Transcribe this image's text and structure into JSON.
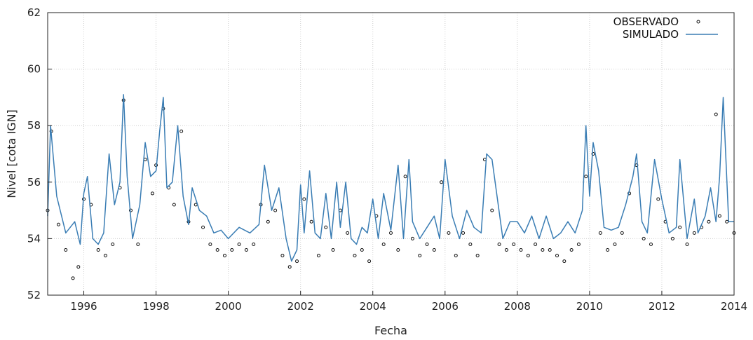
{
  "chart_data": {
    "type": "line",
    "title": "",
    "xlabel": "Fecha",
    "ylabel": "Nivel [cota IGN]",
    "xlim": [
      1995.0,
      2014.0
    ],
    "ylim": [
      52,
      62
    ],
    "x_ticks": [
      1996,
      1998,
      2000,
      2002,
      2004,
      2006,
      2008,
      2010,
      2012,
      2014
    ],
    "y_ticks": [
      52,
      54,
      56,
      58,
      60,
      62
    ],
    "grid": true,
    "legend_position": "top-right",
    "colors": {
      "observed": "#111111",
      "simulated": "#3a7db4"
    },
    "series": [
      {
        "name": "SIMULADO",
        "style": "line",
        "x": [
          1995.0,
          1995.08,
          1995.25,
          1995.5,
          1995.75,
          1995.9,
          1996.0,
          1996.1,
          1996.25,
          1996.4,
          1996.55,
          1996.7,
          1996.85,
          1997.0,
          1997.1,
          1997.2,
          1997.35,
          1997.55,
          1997.7,
          1997.85,
          1998.0,
          1998.1,
          1998.2,
          1998.3,
          1998.45,
          1998.6,
          1998.75,
          1998.9,
          1999.0,
          1999.2,
          1999.4,
          1999.6,
          1999.8,
          2000.0,
          2000.3,
          2000.6,
          2000.85,
          2001.0,
          2001.2,
          2001.4,
          2001.6,
          2001.75,
          2001.9,
          2002.0,
          2002.1,
          2002.25,
          2002.4,
          2002.55,
          2002.7,
          2002.85,
          2003.0,
          2003.1,
          2003.25,
          2003.4,
          2003.55,
          2003.7,
          2003.85,
          2004.0,
          2004.15,
          2004.3,
          2004.5,
          2004.7,
          2004.85,
          2005.0,
          2005.1,
          2005.3,
          2005.5,
          2005.7,
          2005.85,
          2006.0,
          2006.2,
          2006.4,
          2006.6,
          2006.8,
          2007.0,
          2007.15,
          2007.3,
          2007.45,
          2007.6,
          2007.8,
          2008.0,
          2008.2,
          2008.4,
          2008.6,
          2008.8,
          2009.0,
          2009.2,
          2009.4,
          2009.6,
          2009.8,
          2009.9,
          2010.0,
          2010.1,
          2010.25,
          2010.4,
          2010.6,
          2010.8,
          2011.0,
          2011.2,
          2011.3,
          2011.45,
          2011.6,
          2011.8,
          2012.0,
          2012.2,
          2012.4,
          2012.5,
          2012.7,
          2012.9,
          2013.0,
          2013.2,
          2013.35,
          2013.5,
          2013.6,
          2013.7,
          2013.85,
          2014.0
        ],
        "values": [
          54.8,
          58.0,
          55.5,
          54.2,
          54.6,
          53.8,
          55.6,
          56.2,
          54.0,
          53.8,
          54.2,
          57.0,
          55.2,
          56.0,
          59.1,
          56.2,
          54.0,
          55.2,
          57.4,
          56.2,
          56.4,
          57.8,
          59.0,
          55.8,
          56.0,
          58.0,
          55.5,
          54.5,
          55.8,
          55.0,
          54.8,
          54.2,
          54.3,
          54.0,
          54.4,
          54.2,
          54.5,
          56.6,
          55.0,
          55.8,
          54.0,
          53.2,
          53.6,
          55.9,
          54.2,
          56.4,
          54.2,
          54.0,
          55.6,
          54.0,
          56.0,
          54.4,
          56.0,
          54.0,
          53.8,
          54.4,
          54.2,
          55.4,
          54.0,
          55.6,
          54.3,
          56.6,
          54.0,
          56.8,
          54.6,
          54.0,
          54.4,
          54.8,
          54.0,
          56.8,
          54.8,
          54.0,
          55.0,
          54.4,
          54.2,
          57.0,
          56.8,
          55.4,
          54.0,
          54.6,
          54.6,
          54.2,
          54.8,
          54.0,
          54.8,
          54.0,
          54.2,
          54.6,
          54.2,
          55.0,
          58.0,
          55.5,
          57.4,
          56.4,
          54.4,
          54.3,
          54.4,
          55.2,
          56.2,
          57.0,
          54.6,
          54.2,
          56.8,
          55.4,
          54.2,
          54.4,
          56.8,
          54.0,
          55.4,
          54.2,
          54.8,
          55.8,
          54.6,
          56.2,
          59.0,
          54.6,
          54.6
        ]
      },
      {
        "name": "OBSERVADO",
        "style": "points",
        "x": [
          1995.0,
          1995.1,
          1995.3,
          1995.5,
          1995.7,
          1995.85,
          1996.0,
          1996.2,
          1996.4,
          1996.6,
          1996.8,
          1997.0,
          1997.1,
          1997.3,
          1997.5,
          1997.7,
          1997.9,
          1998.0,
          1998.2,
          1998.35,
          1998.5,
          1998.7,
          1998.9,
          1999.1,
          1999.3,
          1999.5,
          1999.7,
          1999.9,
          2000.1,
          2000.3,
          2000.5,
          2000.7,
          2000.9,
          2001.1,
          2001.3,
          2001.5,
          2001.7,
          2001.9,
          2002.1,
          2002.3,
          2002.5,
          2002.7,
          2002.9,
          2003.1,
          2003.3,
          2003.5,
          2003.7,
          2003.9,
          2004.1,
          2004.3,
          2004.5,
          2004.7,
          2004.9,
          2005.1,
          2005.3,
          2005.5,
          2005.7,
          2005.9,
          2006.1,
          2006.3,
          2006.5,
          2006.7,
          2006.9,
          2007.1,
          2007.3,
          2007.5,
          2007.7,
          2007.9,
          2008.1,
          2008.3,
          2008.5,
          2008.7,
          2008.9,
          2009.1,
          2009.3,
          2009.5,
          2009.7,
          2009.9,
          2010.1,
          2010.3,
          2010.5,
          2010.7,
          2010.9,
          2011.1,
          2011.3,
          2011.5,
          2011.7,
          2011.9,
          2012.1,
          2012.3,
          2012.5,
          2012.7,
          2012.9,
          2013.1,
          2013.3,
          2013.5,
          2013.6,
          2013.8,
          2014.0
        ],
        "values": [
          55.0,
          57.8,
          54.5,
          53.6,
          52.6,
          53.0,
          55.4,
          55.2,
          53.6,
          53.4,
          53.8,
          55.8,
          58.9,
          55.0,
          53.8,
          56.8,
          55.6,
          56.6,
          58.6,
          55.8,
          55.2,
          57.8,
          54.6,
          55.2,
          54.4,
          53.8,
          53.6,
          53.4,
          53.6,
          53.8,
          53.6,
          53.8,
          55.2,
          54.6,
          55.0,
          53.4,
          53.0,
          53.2,
          55.4,
          54.6,
          53.4,
          54.4,
          53.6,
          55.0,
          54.2,
          53.4,
          53.6,
          53.2,
          54.8,
          53.8,
          54.2,
          53.6,
          56.2,
          54.0,
          53.4,
          53.8,
          53.6,
          56.0,
          54.2,
          53.4,
          54.2,
          53.8,
          53.4,
          56.8,
          55.0,
          53.8,
          53.6,
          53.8,
          53.6,
          53.4,
          53.8,
          53.6,
          53.6,
          53.4,
          53.2,
          53.6,
          53.8,
          56.2,
          57.0,
          54.2,
          53.6,
          53.8,
          54.2,
          55.6,
          56.6,
          54.0,
          53.8,
          55.4,
          54.6,
          54.0,
          54.4,
          53.8,
          54.2,
          54.4,
          54.6,
          58.4,
          54.8,
          54.6,
          54.2
        ]
      }
    ]
  },
  "legend": {
    "items": [
      {
        "label": "OBSERVADO",
        "series": "OBSERVADO"
      },
      {
        "label": "SIMULADO",
        "series": "SIMULADO"
      }
    ]
  }
}
